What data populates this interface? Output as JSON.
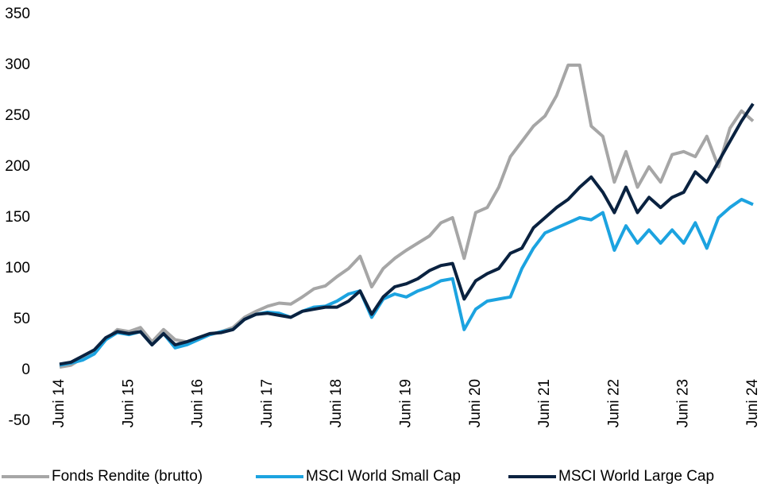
{
  "chart_data": {
    "type": "line",
    "categories": [
      "Juni 14",
      null,
      null,
      null,
      null,
      null,
      "Juni 15",
      null,
      null,
      null,
      null,
      null,
      "Juni 16",
      null,
      null,
      null,
      null,
      null,
      "Juni 17",
      null,
      null,
      null,
      null,
      null,
      "Juni 18",
      null,
      null,
      null,
      null,
      null,
      "Juni 19",
      null,
      null,
      null,
      null,
      null,
      "Juni 20",
      null,
      null,
      null,
      null,
      null,
      "Juni 21",
      null,
      null,
      null,
      null,
      null,
      "Juni 22",
      null,
      null,
      null,
      null,
      null,
      "Juni 23",
      null,
      null,
      null,
      null,
      null,
      "Juni 24"
    ],
    "series": [
      {
        "name": "Fonds Rendite (brutto)",
        "color": "#a6a6a6",
        "values": [
          3,
          5,
          12,
          18,
          30,
          40,
          38,
          42,
          28,
          40,
          30,
          28,
          32,
          35,
          38,
          42,
          52,
          58,
          63,
          66,
          65,
          72,
          80,
          83,
          92,
          100,
          112,
          82,
          100,
          110,
          118,
          125,
          132,
          145,
          150,
          110,
          155,
          160,
          180,
          210,
          225,
          240,
          250,
          270,
          300,
          300,
          240,
          230,
          185,
          215,
          180,
          200,
          185,
          212,
          215,
          210,
          230,
          200,
          238,
          255,
          245
        ]
      },
      {
        "name": "MSCI World Small Cap",
        "color": "#1ca3e0",
        "values": [
          5,
          7,
          10,
          16,
          30,
          37,
          35,
          38,
          25,
          36,
          22,
          25,
          30,
          35,
          38,
          40,
          50,
          55,
          57,
          56,
          52,
          58,
          62,
          63,
          68,
          75,
          78,
          52,
          70,
          75,
          72,
          78,
          82,
          88,
          90,
          40,
          60,
          68,
          70,
          72,
          100,
          120,
          135,
          140,
          145,
          150,
          148,
          155,
          118,
          142,
          125,
          138,
          125,
          138,
          125,
          145,
          120,
          150,
          160,
          168,
          163
        ]
      },
      {
        "name": "MSCI World Large Cap",
        "color": "#0a2240",
        "values": [
          6,
          8,
          14,
          20,
          32,
          38,
          36,
          38,
          25,
          36,
          25,
          28,
          32,
          36,
          37,
          40,
          50,
          55,
          56,
          54,
          52,
          58,
          60,
          62,
          62,
          68,
          78,
          55,
          72,
          82,
          85,
          90,
          98,
          103,
          105,
          70,
          88,
          95,
          100,
          115,
          120,
          140,
          150,
          160,
          168,
          180,
          190,
          175,
          155,
          180,
          155,
          170,
          160,
          170,
          175,
          195,
          185,
          205,
          225,
          245,
          262
        ]
      }
    ],
    "ylim": [
      -50,
      350
    ],
    "yticks": [
      -50,
      0,
      50,
      100,
      150,
      200,
      250,
      300,
      350
    ],
    "grid": false,
    "legend": "bottom"
  }
}
